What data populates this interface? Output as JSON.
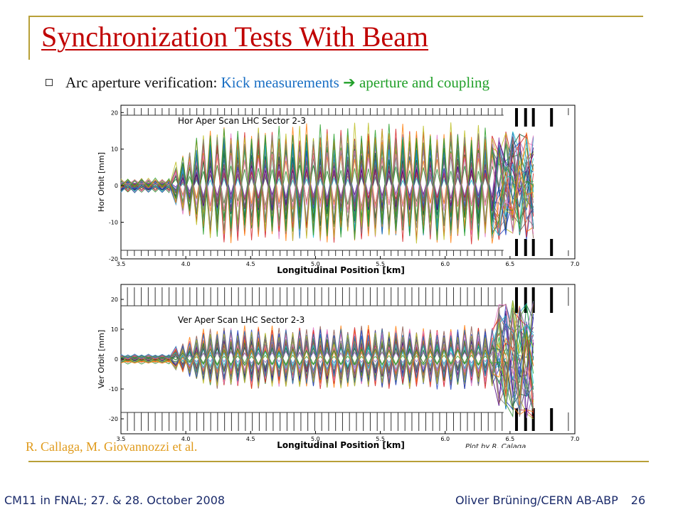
{
  "slide": {
    "title": "Synchronization Tests With Beam",
    "bullet": {
      "text": "Arc aperture verification:",
      "highlight1": "Kick measurements",
      "arrow": "➔",
      "highlight2": "aperture and coupling"
    },
    "credit": "R. Callaga, M. Giovannozzi et al.",
    "plot_by": "Plot by R. Calaga",
    "footer_left": "CM11 in FNAL; 27. & 28. October 2008",
    "footer_right": "Oliver Brüning/CERN AB-ABP",
    "page_number": "26"
  },
  "colors": {
    "title": "#c00000",
    "accent_line": "#b8a038",
    "highlight_blue": "#1a6fc4",
    "highlight_green": "#22a02a",
    "credit": "#e09a1a",
    "footer": "#1a2a6a",
    "series_palette": [
      "#1f3fbf",
      "#2e8b2e",
      "#d62728",
      "#9467bd",
      "#17becf",
      "#bcbd22",
      "#e377c2",
      "#8c564b",
      "#1f77b4",
      "#ff7f0e",
      "#2ca02c",
      "#7f7f7f",
      "#0a5a3a",
      "#4b0082"
    ]
  },
  "chart_data": [
    {
      "type": "line",
      "title": "Hor Aper Scan LHC Sector 2-3",
      "xlabel": "Longitudinal Position [km]",
      "ylabel": "Hor Orbit [mm]",
      "xlim": [
        3.5,
        7.0
      ],
      "ylim": [
        -20,
        22
      ],
      "xticks": [
        "3.5",
        "4.0",
        "4.5",
        "5.0",
        "5.5",
        "6.0",
        "6.5",
        "7.0"
      ],
      "yticks": [
        "20",
        "10",
        "0",
        "-10",
        "-20"
      ],
      "series_count": 40,
      "oscillation_period_km": 0.106,
      "max_amplitude_mm": 17,
      "series_description": "many overlapping kick-response orbit traces, amplitude growing from ~3.9 km, chaotic region near 6.5-6.7 km"
    },
    {
      "type": "line",
      "title": "Ver Aper Scan LHC Sector 2-3",
      "xlabel": "Longitudinal Position [km]",
      "ylabel": "Ver Orbit [mm]",
      "xlim": [
        3.5,
        7.0
      ],
      "ylim": [
        -25,
        25
      ],
      "xticks": [
        "3.5",
        "4.0",
        "4.5",
        "5.0",
        "5.5",
        "6.0",
        "6.5",
        "7.0"
      ],
      "yticks": [
        "20",
        "10",
        "0",
        "-10",
        "-20"
      ],
      "series_count": 40,
      "oscillation_period_km": 0.106,
      "max_amplitude_mm": 11,
      "series_description": "many overlapping kick-response orbit traces, smaller amplitude than horizontal, chaotic spike near 6.5-6.7 km"
    }
  ]
}
